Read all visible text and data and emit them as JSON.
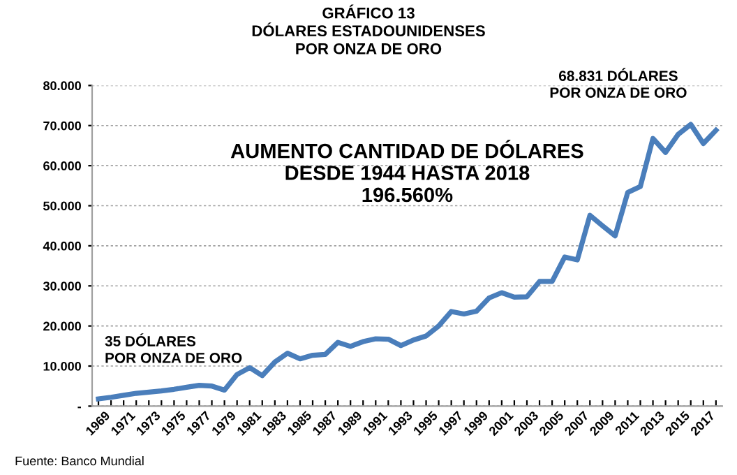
{
  "chart_data": {
    "type": "line",
    "title": "GRÁFICO 13\nDÓLARES ESTADOUNIDENSES\nPOR ONZA DE ORO",
    "categories": [
      "1969",
      null,
      "1971",
      null,
      "1973",
      null,
      "1975",
      null,
      "1977",
      null,
      "1979",
      null,
      "1981",
      null,
      "1983",
      null,
      "1985",
      null,
      "1987",
      null,
      "1989",
      null,
      "1991",
      null,
      "1993",
      null,
      "1995",
      null,
      "1997",
      null,
      "1999",
      null,
      "2001",
      null,
      "2003",
      null,
      "2005",
      null,
      "2007",
      null,
      "2009",
      null,
      "2011",
      null,
      "2013",
      null,
      "2015",
      null,
      "2017",
      null
    ],
    "series": [
      {
        "color": "#4a7ebb",
        "values": [
          1800,
          2200,
          2700,
          3200,
          3500,
          3800,
          4200,
          4700,
          5200,
          5000,
          4000,
          7900,
          9600,
          7600,
          11000,
          13200,
          11800,
          12700,
          12900,
          15900,
          14900,
          16100,
          16800,
          16700,
          15100,
          16500,
          17500,
          20000,
          23600,
          23000,
          23700,
          27000,
          28300,
          27200,
          27300,
          31100,
          31100,
          37200,
          36500,
          47600,
          45000,
          42500,
          53300,
          54800,
          66800,
          63300,
          67800,
          70300,
          65500,
          68831
        ]
      }
    ],
    "ylim": [
      0,
      80000
    ],
    "yticks": [
      {
        "value": 0,
        "label": "-"
      },
      {
        "value": 10000,
        "label": "10.000"
      },
      {
        "value": 20000,
        "label": "20.000"
      },
      {
        "value": 30000,
        "label": "30.000"
      },
      {
        "value": 40000,
        "label": "40.000"
      },
      {
        "value": 50000,
        "label": "50.000"
      },
      {
        "value": 60000,
        "label": "60.000"
      },
      {
        "value": 70000,
        "label": "70.000"
      },
      {
        "value": 80000,
        "label": "80.000"
      }
    ],
    "grid": "y",
    "line_style": "solid",
    "marker": "none",
    "legend": false,
    "annotations": [
      "AUMENTO CANTIDAD DE DÓLARES\nDESDE 1944 HASTA 2018\n196.560%",
      {
        "text": "35 DÓLARES\nPOR ONZA DE ORO",
        "x": "1969",
        "y": 1800
      },
      "68.831 DÓLARES\nPOR ONZA DE ORO",
      "Fuente: Banco Mundial"
    ]
  }
}
